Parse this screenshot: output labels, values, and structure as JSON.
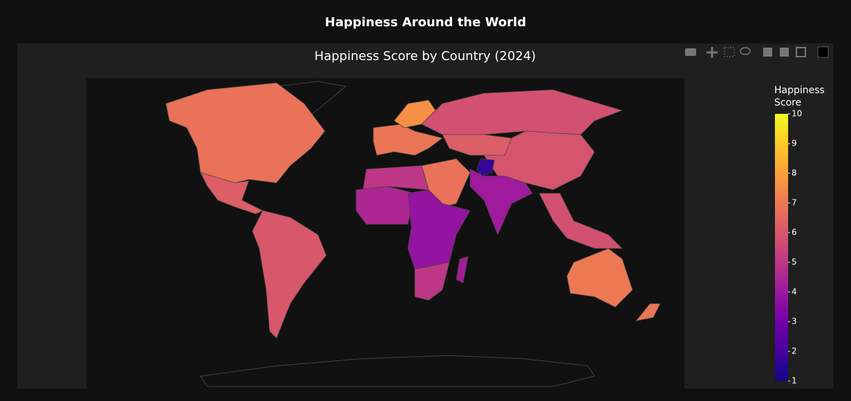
{
  "header": {
    "title": "Happiness Around the World"
  },
  "chart_data": {
    "type": "choropleth",
    "title": "Happiness Score by Country (2024)",
    "colorbar": {
      "title": "Happiness Score",
      "range": [
        1,
        10
      ],
      "ticks": [
        1,
        2,
        3,
        4,
        5,
        6,
        7,
        8,
        9,
        10
      ]
    },
    "colorscale": [
      "#0d0887",
      "#46039f",
      "#7201a8",
      "#9c179e",
      "#bd3786",
      "#d8576b",
      "#ed7953",
      "#fb9f3a",
      "#fdca26",
      "#f0f921"
    ],
    "values": [
      6.8,
      6.2,
      6.0,
      6.9,
      7.6,
      5.8,
      5.9,
      6.8,
      5.0,
      4.5,
      3.8,
      5.0,
      4.1,
      1.7,
      5.8,
      7.0,
      6.9,
      6.2,
      4.2
    ]
  }
}
